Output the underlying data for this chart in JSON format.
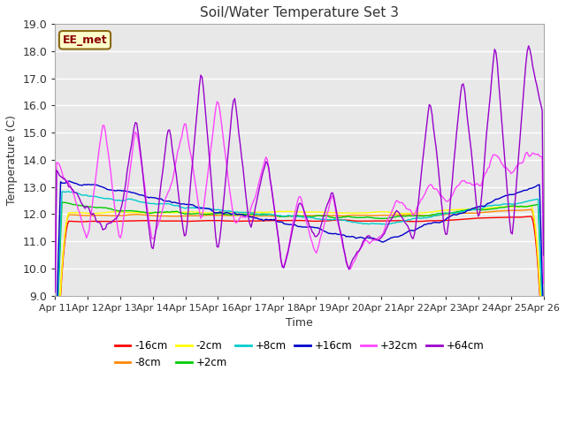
{
  "title": "Soil/Water Temperature Set 3",
  "xlabel": "Time",
  "ylabel": "Temperature (C)",
  "ylim": [
    9.0,
    19.0
  ],
  "yticks": [
    9.0,
    10.0,
    11.0,
    12.0,
    13.0,
    14.0,
    15.0,
    16.0,
    17.0,
    18.0,
    19.0
  ],
  "xtick_labels": [
    "Apr 11",
    "Apr 12",
    "Apr 13",
    "Apr 14",
    "Apr 15",
    "Apr 16",
    "Apr 17",
    "Apr 18",
    "Apr 19",
    "Apr 20",
    "Apr 21",
    "Apr 22",
    "Apr 23",
    "Apr 24",
    "Apr 25",
    "Apr 26"
  ],
  "fig_bg_color": "#ffffff",
  "plot_bg_color": "#e8e8e8",
  "grid_color": "#ffffff",
  "annotation_text": "EE_met",
  "annotation_bg": "#ffffcc",
  "annotation_border": "#8b6914",
  "series": [
    {
      "label": "-16cm",
      "color": "#ff0000"
    },
    {
      "label": "-8cm",
      "color": "#ff8800"
    },
    {
      "label": "-2cm",
      "color": "#ffff00"
    },
    {
      "label": "+2cm",
      "color": "#00cc00"
    },
    {
      "label": "+8cm",
      "color": "#00cccc"
    },
    {
      "label": "+16cm",
      "color": "#0000cc"
    },
    {
      "label": "+32cm",
      "color": "#ff44ff"
    },
    {
      "label": "+64cm",
      "color": "#9900cc"
    }
  ]
}
